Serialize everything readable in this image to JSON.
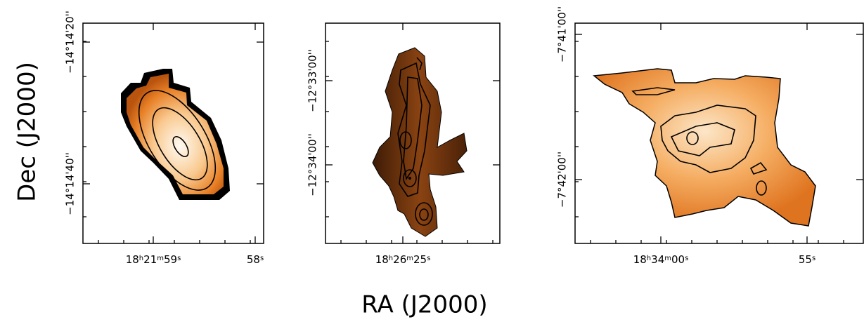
{
  "figure": {
    "y_axis_title": "Dec (J2000)",
    "x_axis_title": "RA (J2000)",
    "panels": [
      {
        "yticks": [
          "−14°14'20''",
          "−14°14'40''"
        ],
        "xticks": [
          "18h21m59s",
          "58s"
        ]
      },
      {
        "yticks": [
          "−12°33'00''",
          "−12°34'00''"
        ],
        "xticks": [
          "18h26m25s"
        ]
      },
      {
        "yticks": [
          "−7°41'00''",
          "−7°42'00''"
        ],
        "xticks": [
          "18h34m00s",
          "55s"
        ]
      }
    ]
  }
}
